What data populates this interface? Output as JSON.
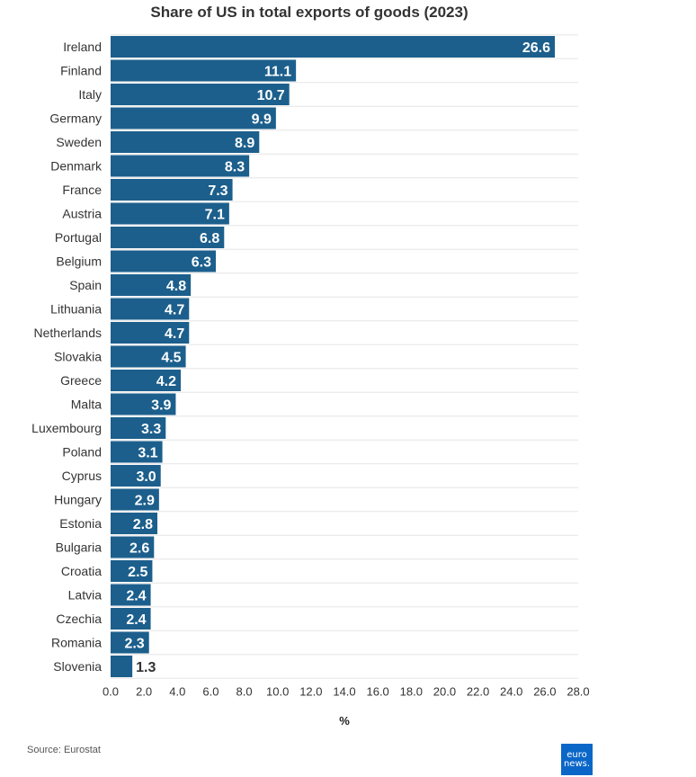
{
  "chart_data": {
    "type": "bar",
    "orientation": "horizontal",
    "title": "Share of US in total exports of goods (2023)",
    "xlabel": "%",
    "ylabel": "",
    "xlim": [
      0,
      28
    ],
    "xticks": [
      "0.0",
      "2.0",
      "4.0",
      "6.0",
      "8.0",
      "10.0",
      "12.0",
      "14.0",
      "16.0",
      "18.0",
      "20.0",
      "22.0",
      "24.0",
      "26.0",
      "28.0"
    ],
    "categories": [
      "Ireland",
      "Finland",
      "Italy",
      "Germany",
      "Sweden",
      "Denmark",
      "France",
      "Austria",
      "Portugal",
      "Belgium",
      "Spain",
      "Lithuania",
      "Netherlands",
      "Slovakia",
      "Greece",
      "Malta",
      "Luxembourg",
      "Poland",
      "Cyprus",
      "Hungary",
      "Estonia",
      "Bulgaria",
      "Croatia",
      "Latvia",
      "Czechia",
      "Romania",
      "Slovenia"
    ],
    "values": [
      26.6,
      11.1,
      10.7,
      9.9,
      8.9,
      8.3,
      7.3,
      7.1,
      6.8,
      6.3,
      4.8,
      4.7,
      4.7,
      4.5,
      4.2,
      3.9,
      3.3,
      3.1,
      3.0,
      2.9,
      2.8,
      2.6,
      2.5,
      2.4,
      2.4,
      2.3,
      1.3
    ],
    "bar_color": "#1c5f8c"
  },
  "footer": {
    "source": "Source: Eurostat",
    "logo_line1": "euro",
    "logo_line2": "news."
  }
}
